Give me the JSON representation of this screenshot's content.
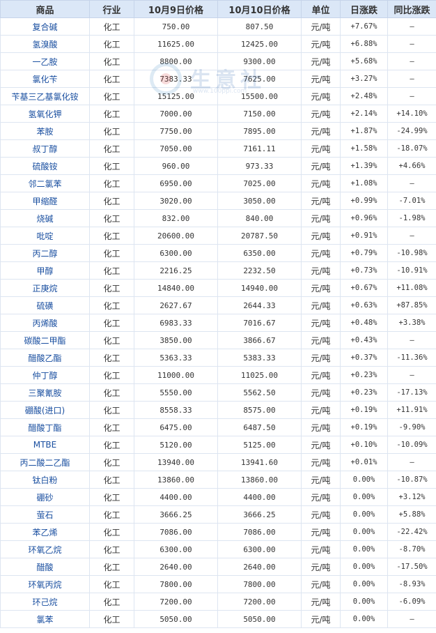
{
  "headers": [
    "商品",
    "行业",
    "10月9日价格",
    "10月10日价格",
    "单位",
    "日涨跌",
    "同比涨跌"
  ],
  "watermark": {
    "cn": "生意社",
    "url": "www.100ppi.com"
  },
  "rows": [
    {
      "name": "复合碱",
      "ind": "化工",
      "p1": "750.00",
      "p2": "807.50",
      "unit": "元/吨",
      "day": "+7.67%",
      "yoy": "—"
    },
    {
      "name": "氢溴酸",
      "ind": "化工",
      "p1": "11625.00",
      "p2": "12425.00",
      "unit": "元/吨",
      "day": "+6.88%",
      "yoy": "—"
    },
    {
      "name": "一乙胺",
      "ind": "化工",
      "p1": "8800.00",
      "p2": "9300.00",
      "unit": "元/吨",
      "day": "+5.68%",
      "yoy": "—"
    },
    {
      "name": "氯化苄",
      "ind": "化工",
      "p1": "7383.33",
      "p2": "7625.00",
      "unit": "元/吨",
      "day": "+3.27%",
      "yoy": "—"
    },
    {
      "name": "苄基三乙基氯化铵",
      "ind": "化工",
      "p1": "15125.00",
      "p2": "15500.00",
      "unit": "元/吨",
      "day": "+2.48%",
      "yoy": "—"
    },
    {
      "name": "氢氧化钾",
      "ind": "化工",
      "p1": "7000.00",
      "p2": "7150.00",
      "unit": "元/吨",
      "day": "+2.14%",
      "yoy": "+14.10%"
    },
    {
      "name": "苯胺",
      "ind": "化工",
      "p1": "7750.00",
      "p2": "7895.00",
      "unit": "元/吨",
      "day": "+1.87%",
      "yoy": "-24.99%"
    },
    {
      "name": "叔丁醇",
      "ind": "化工",
      "p1": "7050.00",
      "p2": "7161.11",
      "unit": "元/吨",
      "day": "+1.58%",
      "yoy": "-18.07%"
    },
    {
      "name": "硫酸铵",
      "ind": "化工",
      "p1": "960.00",
      "p2": "973.33",
      "unit": "元/吨",
      "day": "+1.39%",
      "yoy": "+4.66%"
    },
    {
      "name": "邻二氯苯",
      "ind": "化工",
      "p1": "6950.00",
      "p2": "7025.00",
      "unit": "元/吨",
      "day": "+1.08%",
      "yoy": "—"
    },
    {
      "name": "甲缩醛",
      "ind": "化工",
      "p1": "3020.00",
      "p2": "3050.00",
      "unit": "元/吨",
      "day": "+0.99%",
      "yoy": "-7.01%"
    },
    {
      "name": "烧碱",
      "ind": "化工",
      "p1": "832.00",
      "p2": "840.00",
      "unit": "元/吨",
      "day": "+0.96%",
      "yoy": "-1.98%"
    },
    {
      "name": "吡啶",
      "ind": "化工",
      "p1": "20600.00",
      "p2": "20787.50",
      "unit": "元/吨",
      "day": "+0.91%",
      "yoy": "—"
    },
    {
      "name": "丙二醇",
      "ind": "化工",
      "p1": "6300.00",
      "p2": "6350.00",
      "unit": "元/吨",
      "day": "+0.79%",
      "yoy": "-10.98%"
    },
    {
      "name": "甲醇",
      "ind": "化工",
      "p1": "2216.25",
      "p2": "2232.50",
      "unit": "元/吨",
      "day": "+0.73%",
      "yoy": "-10.91%"
    },
    {
      "name": "正庚烷",
      "ind": "化工",
      "p1": "14840.00",
      "p2": "14940.00",
      "unit": "元/吨",
      "day": "+0.67%",
      "yoy": "+11.08%"
    },
    {
      "name": "硫磺",
      "ind": "化工",
      "p1": "2627.67",
      "p2": "2644.33",
      "unit": "元/吨",
      "day": "+0.63%",
      "yoy": "+87.85%"
    },
    {
      "name": "丙烯酸",
      "ind": "化工",
      "p1": "6983.33",
      "p2": "7016.67",
      "unit": "元/吨",
      "day": "+0.48%",
      "yoy": "+3.38%"
    },
    {
      "name": "碳酸二甲酯",
      "ind": "化工",
      "p1": "3850.00",
      "p2": "3866.67",
      "unit": "元/吨",
      "day": "+0.43%",
      "yoy": "—"
    },
    {
      "name": "醋酸乙酯",
      "ind": "化工",
      "p1": "5363.33",
      "p2": "5383.33",
      "unit": "元/吨",
      "day": "+0.37%",
      "yoy": "-11.36%"
    },
    {
      "name": "仲丁醇",
      "ind": "化工",
      "p1": "11000.00",
      "p2": "11025.00",
      "unit": "元/吨",
      "day": "+0.23%",
      "yoy": "—"
    },
    {
      "name": "三聚氰胺",
      "ind": "化工",
      "p1": "5550.00",
      "p2": "5562.50",
      "unit": "元/吨",
      "day": "+0.23%",
      "yoy": "-17.13%"
    },
    {
      "name": "硼酸(进口)",
      "ind": "化工",
      "p1": "8558.33",
      "p2": "8575.00",
      "unit": "元/吨",
      "day": "+0.19%",
      "yoy": "+11.91%"
    },
    {
      "name": "醋酸丁酯",
      "ind": "化工",
      "p1": "6475.00",
      "p2": "6487.50",
      "unit": "元/吨",
      "day": "+0.19%",
      "yoy": "-9.90%"
    },
    {
      "name": "MTBE",
      "ind": "化工",
      "p1": "5120.00",
      "p2": "5125.00",
      "unit": "元/吨",
      "day": "+0.10%",
      "yoy": "-10.09%"
    },
    {
      "name": "丙二酸二乙酯",
      "ind": "化工",
      "p1": "13940.00",
      "p2": "13941.60",
      "unit": "元/吨",
      "day": "+0.01%",
      "yoy": "—"
    },
    {
      "name": "钛白粉",
      "ind": "化工",
      "p1": "13860.00",
      "p2": "13860.00",
      "unit": "元/吨",
      "day": "0.00%",
      "yoy": "-10.87%"
    },
    {
      "name": "硼砂",
      "ind": "化工",
      "p1": "4400.00",
      "p2": "4400.00",
      "unit": "元/吨",
      "day": "0.00%",
      "yoy": "+3.12%"
    },
    {
      "name": "萤石",
      "ind": "化工",
      "p1": "3666.25",
      "p2": "3666.25",
      "unit": "元/吨",
      "day": "0.00%",
      "yoy": "+5.88%"
    },
    {
      "name": "苯乙烯",
      "ind": "化工",
      "p1": "7086.00",
      "p2": "7086.00",
      "unit": "元/吨",
      "day": "0.00%",
      "yoy": "-22.42%"
    },
    {
      "name": "环氧乙烷",
      "ind": "化工",
      "p1": "6300.00",
      "p2": "6300.00",
      "unit": "元/吨",
      "day": "0.00%",
      "yoy": "-8.70%"
    },
    {
      "name": "醋酸",
      "ind": "化工",
      "p1": "2640.00",
      "p2": "2640.00",
      "unit": "元/吨",
      "day": "0.00%",
      "yoy": "-17.50%"
    },
    {
      "name": "环氧丙烷",
      "ind": "化工",
      "p1": "7800.00",
      "p2": "7800.00",
      "unit": "元/吨",
      "day": "0.00%",
      "yoy": "-8.93%"
    },
    {
      "name": "环己烷",
      "ind": "化工",
      "p1": "7200.00",
      "p2": "7200.00",
      "unit": "元/吨",
      "day": "0.00%",
      "yoy": "-6.09%"
    },
    {
      "name": "氯苯",
      "ind": "化工",
      "p1": "5050.00",
      "p2": "5050.00",
      "unit": "元/吨",
      "day": "0.00%",
      "yoy": "—"
    }
  ]
}
